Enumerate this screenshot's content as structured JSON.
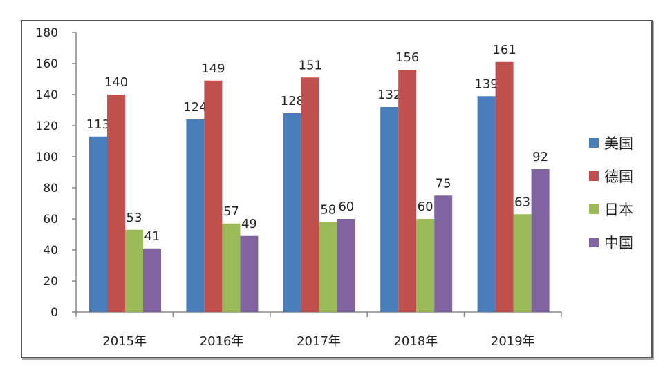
{
  "chart_data": {
    "type": "bar",
    "categories": [
      "2015年",
      "2016年",
      "2017年",
      "2018年",
      "2019年"
    ],
    "series": [
      {
        "name": "美国",
        "color": "#4a7ebb",
        "values": [
          113,
          124,
          128,
          132,
          139
        ]
      },
      {
        "name": "德国",
        "color": "#c0504d",
        "values": [
          140,
          149,
          151,
          156,
          161
        ]
      },
      {
        "name": "日本",
        "color": "#9bbb59",
        "values": [
          53,
          57,
          58,
          60,
          63
        ]
      },
      {
        "name": "中国",
        "color": "#8064a2",
        "values": [
          41,
          49,
          60,
          75,
          92
        ]
      }
    ],
    "ylim": [
      0,
      180
    ],
    "yticks": [
      0,
      20,
      40,
      60,
      80,
      100,
      120,
      140,
      160,
      180
    ],
    "legend_position": "right",
    "grid": false
  }
}
